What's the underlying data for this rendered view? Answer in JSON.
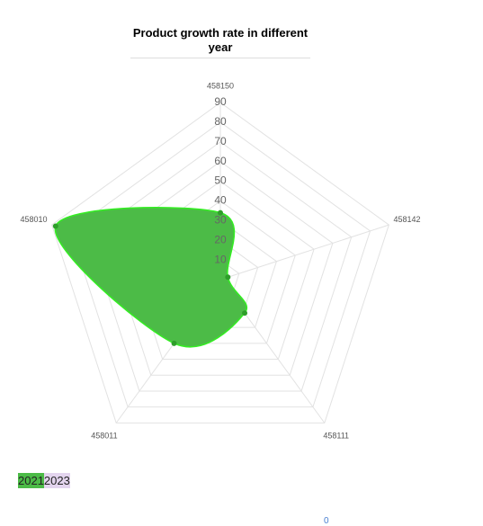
{
  "chart_data": {
    "type": "radar",
    "title": "Product growth rate in different year",
    "categories": [
      "458150",
      "458142",
      "458111",
      "458011",
      "458010"
    ],
    "series": [
      {
        "name": "2021",
        "color": "#4cbb47",
        "values": [
          34,
          4,
          21,
          40,
          88
        ]
      },
      {
        "name": "2023",
        "color": "#e3d4ee",
        "values": [
          null,
          null,
          null,
          null,
          null
        ]
      }
    ],
    "ylim": [
      0,
      90
    ],
    "yticks": [
      0,
      10,
      20,
      30,
      40,
      50,
      60,
      70,
      80,
      90
    ],
    "grid": true,
    "footer": "0"
  }
}
